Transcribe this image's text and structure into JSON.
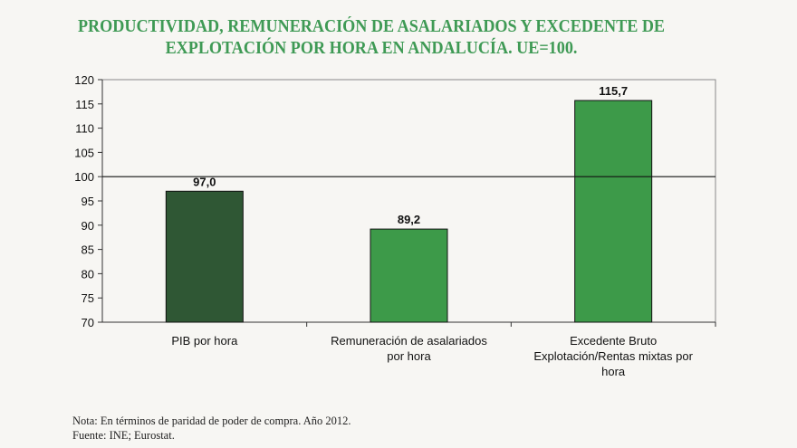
{
  "chart_data": {
    "type": "bar",
    "title_lines": [
      "PRODUCTIVIDAD, REMUNERACIÓN DE ASALARIADOS Y EXCEDENTE DE",
      "EXPLOTACIÓN POR HORA EN ANDALUCÍA. UE=100."
    ],
    "categories": [
      [
        "PIB por hora"
      ],
      [
        "Remuneración de asalariados",
        "por hora"
      ],
      [
        "Excedente Bruto",
        "Explotación/Rentas mixtas por",
        "hora"
      ]
    ],
    "values": [
      97.0,
      89.2,
      115.7
    ],
    "data_labels": [
      "97,0",
      "89,2",
      "115,7"
    ],
    "bar_colors": [
      "#2f5734",
      "#3d9a49",
      "#3d9a49"
    ],
    "ylim": [
      70,
      120
    ],
    "yticks": [
      70,
      75,
      80,
      85,
      90,
      95,
      100,
      105,
      110,
      115,
      120
    ],
    "reference_line": 100,
    "grid": false,
    "legend": "none",
    "xlabel": "",
    "ylabel": ""
  },
  "notes": {
    "nota": "Nota: En términos de paridad de poder de compra. Año 2012.",
    "fuente": "Fuente: INE; Eurostat."
  }
}
